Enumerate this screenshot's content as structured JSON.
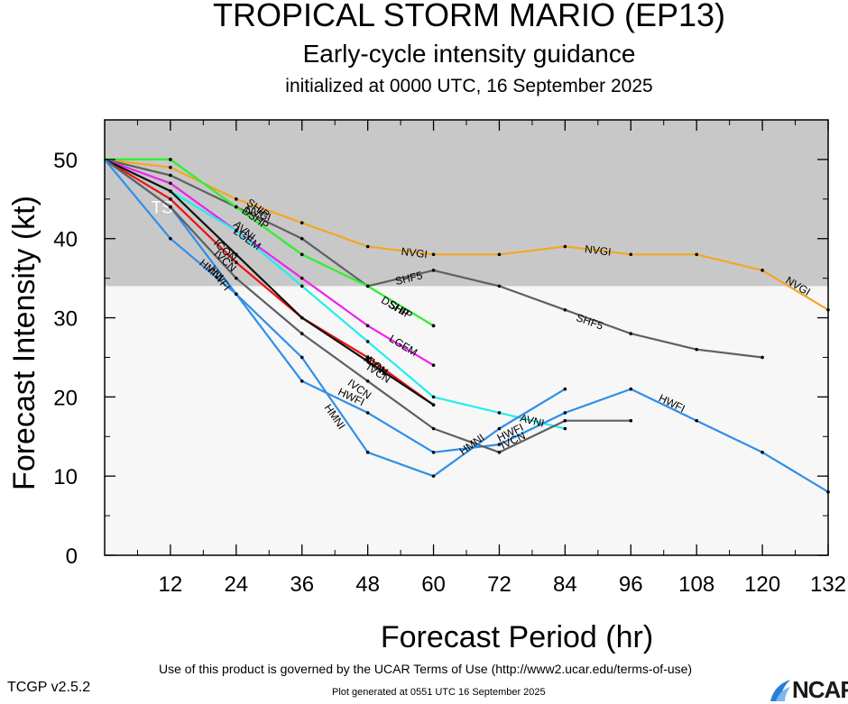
{
  "header": {
    "title": "TROPICAL STORM MARIO (EP13)",
    "subtitle": "Early-cycle intensity guidance",
    "init_line": "initialized at 0000 UTC, 16 September 2025"
  },
  "footer": {
    "terms": "Use of this product is governed by the UCAR Terms of Use (http://www2.ucar.edu/terms-of-use)",
    "version": "TCGP v2.5.2",
    "generated": "Plot generated at 0551 UTC   16 September 2025",
    "logo_text": "NCAR",
    "logo_icon": "ncar-logo-icon"
  },
  "chart_data": {
    "type": "line",
    "xlabel": "Forecast Period (hr)",
    "ylabel": "Forecast Intensity (kt)",
    "xlim": [
      0,
      132
    ],
    "ylim": [
      0,
      55
    ],
    "xticks": [
      12,
      24,
      36,
      48,
      60,
      72,
      84,
      96,
      108,
      120,
      132
    ],
    "yticks": [
      0,
      10,
      20,
      30,
      40,
      50
    ],
    "ts_band": {
      "label": "TS",
      "from": 34,
      "to": 55,
      "color": "#c8c8c8"
    },
    "lower_band_color": "#f7f7f7",
    "series": [
      {
        "name": "NVGI",
        "color": "#f5a623",
        "x": [
          0,
          12,
          24,
          36,
          48,
          60,
          72,
          84,
          96,
          108,
          120,
          132
        ],
        "y": [
          50,
          49,
          45,
          42,
          39,
          38,
          38,
          39,
          38,
          38,
          36,
          31
        ],
        "labels": [
          {
            "x": 28,
            "y": 43.2
          },
          {
            "x": 56.5,
            "y": 38.2
          },
          {
            "x": 90,
            "y": 38.5
          },
          {
            "x": 126.5,
            "y": 34
          }
        ]
      },
      {
        "name": "SHF5",
        "color": "#606060",
        "x": [
          0,
          12,
          24,
          36,
          48,
          60,
          72,
          84,
          96,
          108,
          120
        ],
        "y": [
          50,
          48,
          44,
          40,
          34,
          36,
          34,
          31,
          28,
          26,
          25
        ],
        "labels": [
          {
            "x": 55.5,
            "y": 35
          },
          {
            "x": 88.5,
            "y": 29.5
          }
        ]
      },
      {
        "name": "SHIP",
        "color": "#33ee33",
        "x": [
          0,
          12,
          24,
          36,
          48,
          60
        ],
        "y": [
          50,
          50,
          44,
          38,
          34,
          29
        ],
        "labels": [
          {
            "x": 28,
            "y": 43.8
          },
          {
            "x": 54,
            "y": 31
          }
        ]
      },
      {
        "name": "DSHP",
        "color": "#33ee33",
        "x": [
          0,
          12,
          24,
          36,
          48,
          60
        ],
        "y": [
          50,
          50,
          44,
          38,
          34,
          29
        ],
        "labels": [
          {
            "x": 27.5,
            "y": 42.6
          },
          {
            "x": 53,
            "y": 31.4
          }
        ]
      },
      {
        "name": "LGEM",
        "color": "#ee22ee",
        "x": [
          0,
          12,
          24,
          36,
          48,
          60
        ],
        "y": [
          50,
          47,
          41,
          35,
          29,
          24
        ],
        "labels": [
          {
            "x": 26,
            "y": 40
          },
          {
            "x": 54.5,
            "y": 26.5
          }
        ]
      },
      {
        "name": "AVNI",
        "color": "#22eeee",
        "x": [
          0,
          12,
          24,
          36,
          48,
          60,
          72,
          84
        ],
        "y": [
          50,
          46,
          41,
          34,
          27,
          20,
          18,
          16
        ],
        "labels": [
          {
            "x": 25.5,
            "y": 41
          },
          {
            "x": 49.5,
            "y": 24
          },
          {
            "x": 78,
            "y": 17
          }
        ]
      },
      {
        "name": "ICON",
        "color": "#ee1111",
        "x": [
          0,
          12,
          24,
          36,
          48,
          60
        ],
        "y": [
          50,
          45,
          37,
          30,
          25,
          19
        ],
        "labels": [
          {
            "x": 22,
            "y": 38.5
          },
          {
            "x": 49.5,
            "y": 24
          }
        ]
      },
      {
        "name": "IVCN",
        "color": "#111111",
        "x": [
          0,
          12,
          24,
          36,
          48,
          60
        ],
        "y": [
          50,
          46,
          38,
          30,
          24.5,
          19
        ],
        "labels": [
          {
            "x": 22,
            "y": 37.2
          },
          {
            "x": 50,
            "y": 23
          }
        ]
      },
      {
        "name": "HWFI",
        "color": "#2f8fe8",
        "x": [
          0,
          12,
          24,
          36,
          48,
          60,
          72,
          84,
          96,
          108,
          120,
          132
        ],
        "y": [
          50,
          44,
          33,
          22,
          18,
          13,
          14,
          18,
          21,
          17,
          13,
          8
        ],
        "labels": [
          {
            "x": 21,
            "y": 35
          },
          {
            "x": 45,
            "y": 20
          },
          {
            "x": 74,
            "y": 15.5
          },
          {
            "x": 103.5,
            "y": 19.2
          }
        ]
      },
      {
        "name": "IVCN2",
        "color": "#606060",
        "x": [
          0,
          12,
          24,
          36,
          48,
          60,
          72,
          84,
          96
        ],
        "y": [
          50,
          44,
          35,
          28,
          22,
          16,
          13,
          17,
          17
        ],
        "labels": [
          {
            "x": 46.5,
            "y": 21
          },
          {
            "x": 74.5,
            "y": 14.5
          }
        ]
      },
      {
        "name": "HMNI",
        "color": "#2f8fe8",
        "x": [
          0,
          12,
          24,
          36,
          48,
          60,
          72,
          84
        ],
        "y": [
          50,
          40,
          33,
          25,
          13,
          10,
          16,
          21
        ],
        "labels": [
          {
            "x": 19.5,
            "y": 36
          },
          {
            "x": 42,
            "y": 17.5
          },
          {
            "x": 67,
            "y": 14
          }
        ]
      }
    ]
  }
}
